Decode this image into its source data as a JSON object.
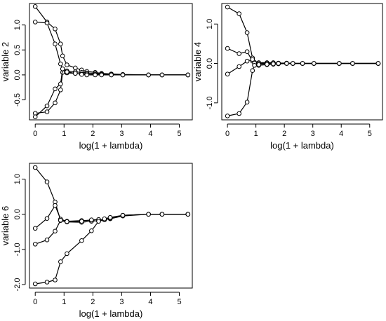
{
  "chart_data": [
    {
      "type": "line",
      "xlabel": "log(1 + lambda)",
      "ylabel": "variable 2",
      "xlim": [
        -0.2,
        5.45
      ],
      "ylim": [
        -0.9,
        1.43
      ],
      "x_ticks": [
        0,
        1,
        2,
        3,
        4,
        5
      ],
      "y_ticks": [
        -0.5,
        0.0,
        0.5,
        1.0
      ],
      "y_tick_labels": [
        "-0.5",
        "0.0",
        "0.5",
        "1.0"
      ],
      "x": [
        0.0,
        0.41,
        0.69,
        0.88,
        0.95,
        1.1,
        1.39,
        1.61,
        1.79,
        2.08,
        2.3,
        2.64,
        3.04,
        3.93,
        4.4,
        5.3
      ],
      "series": [
        {
          "values": [
            1.37,
            1.06,
            0.92,
            0.62,
            0.38,
            0.2,
            0.14,
            0.1,
            0.07,
            0.05,
            0.03,
            0.02,
            0.01,
            0.0,
            0.0,
            0.0
          ]
        },
        {
          "values": [
            1.06,
            1.04,
            0.62,
            0.22,
            0.12,
            0.08,
            0.06,
            0.05,
            0.04,
            0.03,
            0.02,
            0.01,
            0.0,
            0.0,
            0.0,
            0.0
          ]
        },
        {
          "values": [
            -0.77,
            -0.74,
            -0.56,
            -0.3,
            0.05,
            0.04,
            0.03,
            0.02,
            0.02,
            0.01,
            0.01,
            0.0,
            0.0,
            0.0,
            0.0,
            0.0
          ]
        },
        {
          "values": [
            -0.84,
            -0.62,
            -0.28,
            -0.18,
            0.12,
            0.06,
            0.03,
            0.01,
            0.0,
            0.0,
            0.0,
            0.0,
            0.0,
            0.0,
            0.0,
            0.0
          ]
        }
      ]
    },
    {
      "type": "line",
      "xlabel": "log(1 + lambda)",
      "ylabel": "variable 4",
      "xlim": [
        -0.2,
        5.45
      ],
      "ylim": [
        -1.43,
        1.52
      ],
      "x_ticks": [
        0,
        1,
        2,
        3,
        4,
        5
      ],
      "y_ticks": [
        -1.0,
        0.0,
        1.0
      ],
      "y_tick_labels": [
        "-1.0",
        "0.0",
        "1.0"
      ],
      "x": [
        0.0,
        0.41,
        0.69,
        0.88,
        0.95,
        1.1,
        1.39,
        1.61,
        1.79,
        2.08,
        2.3,
        2.64,
        3.04,
        3.93,
        4.4,
        5.3
      ],
      "series": [
        {
          "values": [
            1.43,
            1.26,
            0.78,
            0.14,
            -0.04,
            -0.05,
            -0.03,
            -0.02,
            -0.01,
            0.0,
            0.0,
            0.0,
            0.0,
            0.0,
            0.0,
            0.0
          ]
        },
        {
          "values": [
            0.38,
            0.25,
            0.3,
            0.06,
            0.03,
            0.02,
            0.02,
            0.02,
            0.01,
            0.01,
            0.0,
            0.0,
            0.0,
            0.0,
            0.0,
            0.0
          ]
        },
        {
          "values": [
            -0.27,
            -0.08,
            0.06,
            0.1,
            0.01,
            0.0,
            0.0,
            0.0,
            0.0,
            0.0,
            0.0,
            0.0,
            0.0,
            0.0,
            0.0,
            0.0
          ]
        },
        {
          "values": [
            -1.33,
            -1.27,
            -0.98,
            -0.18,
            -0.05,
            -0.03,
            -0.02,
            -0.01,
            0.0,
            0.0,
            0.0,
            0.0,
            0.0,
            0.0,
            0.0,
            0.0
          ]
        }
      ]
    },
    {
      "type": "line",
      "xlabel": "log(1 + lambda)",
      "ylabel": "variable 6",
      "xlim": [
        -0.2,
        5.45
      ],
      "ylim": [
        -2.1,
        1.45
      ],
      "x_ticks": [
        0,
        1,
        2,
        3,
        4,
        5
      ],
      "y_ticks": [
        -2.0,
        -1.0,
        0.0,
        1.0
      ],
      "y_tick_labels": [
        "-2.0",
        "-1.0",
        "0.0",
        "1.0"
      ],
      "x": [
        0.0,
        0.41,
        0.69,
        0.88,
        1.1,
        1.61,
        1.95,
        2.2,
        2.4,
        2.6,
        3.04,
        3.93,
        4.4,
        5.3
      ],
      "series": [
        {
          "values": [
            1.33,
            0.92,
            0.35,
            -0.18,
            -0.22,
            -0.23,
            -0.2,
            -0.18,
            -0.15,
            -0.13,
            -0.05,
            0.0,
            0.0,
            0.0
          ]
        },
        {
          "values": [
            -0.4,
            -0.12,
            0.25,
            -0.14,
            -0.2,
            -0.18,
            -0.17,
            -0.2,
            -0.16,
            -0.12,
            -0.03,
            0.0,
            0.0,
            0.0
          ]
        },
        {
          "values": [
            -0.85,
            -0.73,
            -0.48,
            -0.17,
            -0.21,
            -0.2,
            -0.16,
            -0.15,
            -0.16,
            -0.11,
            -0.03,
            0.0,
            0.0,
            0.0
          ]
        },
        {
          "values": [
            -1.98,
            -1.93,
            -1.87,
            -1.35,
            -1.12,
            -0.75,
            -0.47,
            -0.2,
            -0.13,
            -0.09,
            -0.03,
            0.0,
            0.0,
            0.0
          ]
        }
      ]
    }
  ]
}
